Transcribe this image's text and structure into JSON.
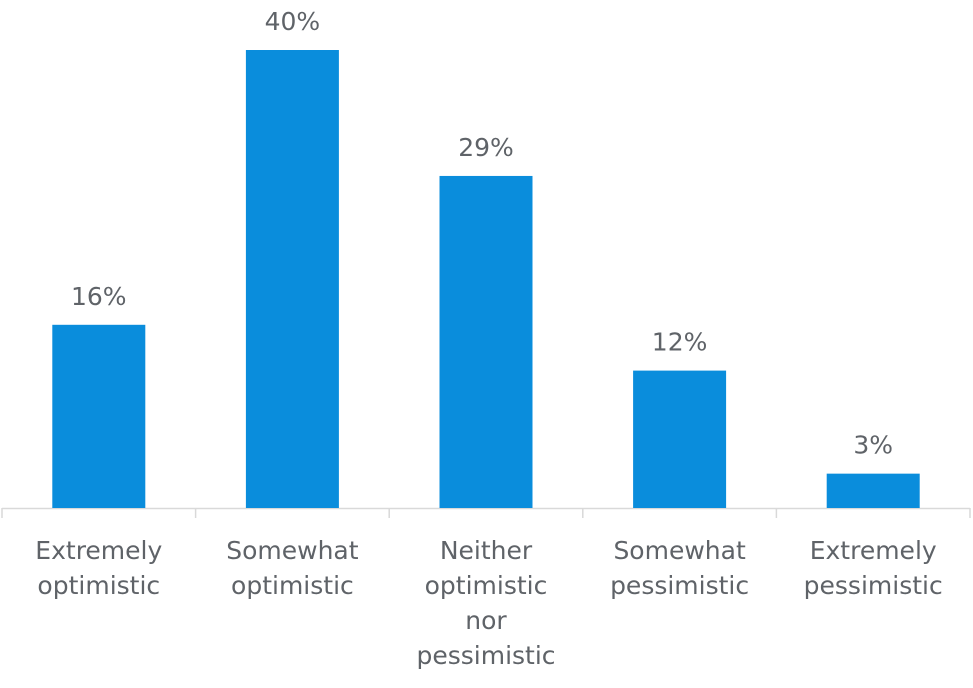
{
  "chart_data": {
    "type": "bar",
    "categories": [
      [
        "Extremely",
        "optimistic"
      ],
      [
        "Somewhat",
        "optimistic"
      ],
      [
        "Neither",
        "optimistic",
        "nor",
        "pessimistic"
      ],
      [
        "Somewhat",
        "pessimistic"
      ],
      [
        "Extremely",
        "pessimistic"
      ]
    ],
    "values": [
      16,
      40,
      29,
      12,
      3
    ],
    "data_labels": [
      "16%",
      "40%",
      "29%",
      "12%",
      "3%"
    ],
    "title": "",
    "xlabel": "",
    "ylabel": "",
    "ylim": [
      0,
      40
    ],
    "grid": false,
    "legend": "none",
    "bar_color": "#0a8ddc",
    "label_color": "#5f6368",
    "axis_color": "#d9d9d9"
  }
}
